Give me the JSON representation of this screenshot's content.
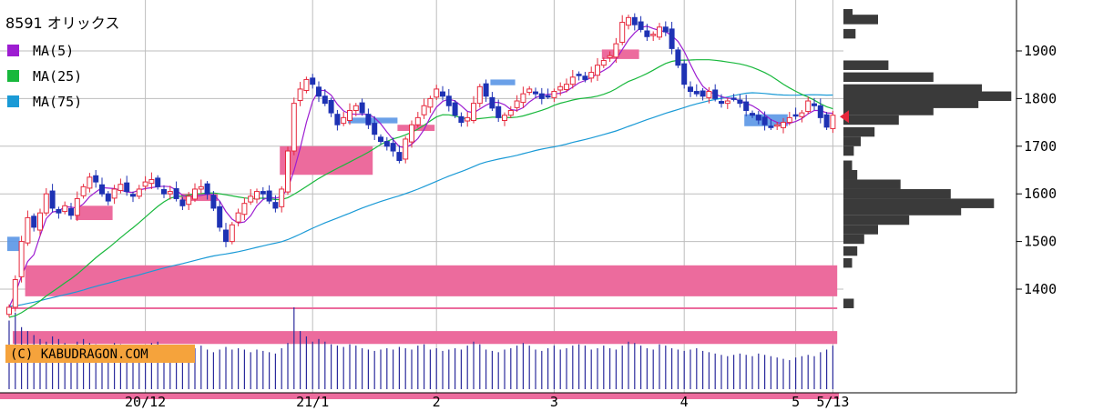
{
  "chart_data": {
    "type": "candlestick",
    "title": "8591 オリックス",
    "copyright": "(C) KABUDRAGON.COM",
    "legend": [
      {
        "label": "MA(5)",
        "color": "#9d1dd1"
      },
      {
        "label": "MA(25)",
        "color": "#18b83c"
      },
      {
        "label": "MA(75)",
        "color": "#1a9ad6"
      }
    ],
    "y_axis": {
      "ticks": [
        1400,
        1500,
        1600,
        1700,
        1800,
        1900
      ],
      "range": [
        1260,
        1990
      ],
      "position": "right"
    },
    "x_axis": {
      "labels": [
        {
          "text": "20/12",
          "index": 22
        },
        {
          "text": "21/1",
          "index": 49
        },
        {
          "text": "2",
          "index": 69
        },
        {
          "text": "3",
          "index": 88
        },
        {
          "text": "4",
          "index": 109
        },
        {
          "text": "5",
          "index": 127
        },
        {
          "text": "5/13",
          "index": 133
        }
      ]
    },
    "colors": {
      "up": "#e6283c",
      "down": "#1e32b4",
      "pink": "#ec6b9d",
      "blue_band": "#5a96e6",
      "volume": "#2b2b9c",
      "grid": "#bdbdbd",
      "profile": "#3a3a3a",
      "marker": "#e6283c",
      "copyright_bg": "#f5a33c"
    },
    "closes": [
      1362,
      1420,
      1500,
      1550,
      1530,
      1560,
      1600,
      1570,
      1560,
      1575,
      1555,
      1590,
      1615,
      1635,
      1625,
      1600,
      1585,
      1610,
      1620,
      1605,
      1595,
      1610,
      1625,
      1630,
      1615,
      1600,
      1605,
      1590,
      1575,
      1595,
      1610,
      1615,
      1600,
      1570,
      1530,
      1500,
      1535,
      1560,
      1580,
      1595,
      1605,
      1600,
      1585,
      1570,
      1610,
      1690,
      1790,
      1820,
      1840,
      1830,
      1805,
      1790,
      1770,
      1745,
      1760,
      1775,
      1785,
      1770,
      1745,
      1725,
      1710,
      1700,
      1690,
      1670,
      1715,
      1745,
      1760,
      1785,
      1800,
      1820,
      1805,
      1785,
      1765,
      1750,
      1760,
      1790,
      1825,
      1805,
      1780,
      1760,
      1765,
      1775,
      1795,
      1810,
      1820,
      1810,
      1800,
      1805,
      1815,
      1825,
      1830,
      1845,
      1850,
      1840,
      1855,
      1870,
      1880,
      1890,
      1915,
      1960,
      1970,
      1955,
      1945,
      1930,
      1935,
      1950,
      1940,
      1905,
      1870,
      1830,
      1815,
      1810,
      1805,
      1815,
      1800,
      1790,
      1795,
      1800,
      1790,
      1775,
      1765,
      1755,
      1745,
      1740,
      1745,
      1750,
      1760,
      1765,
      1770,
      1795,
      1785,
      1760,
      1740,
      1765
    ],
    "volumes": [
      52,
      58,
      47,
      44,
      41,
      38,
      36,
      40,
      38,
      35,
      33,
      36,
      38,
      35,
      34,
      33,
      31,
      35,
      34,
      33,
      30,
      31,
      33,
      35,
      36,
      31,
      30,
      32,
      30,
      29,
      31,
      33,
      30,
      28,
      30,
      32,
      30,
      31,
      30,
      28,
      30,
      29,
      28,
      27,
      31,
      35,
      62,
      44,
      40,
      36,
      38,
      36,
      34,
      33,
      32,
      34,
      33,
      31,
      30,
      29,
      30,
      31,
      30,
      32,
      31,
      30,
      33,
      34,
      30,
      31,
      29,
      30,
      31,
      30,
      33,
      36,
      34,
      30,
      29,
      28,
      30,
      31,
      33,
      35,
      33,
      30,
      29,
      31,
      33,
      30,
      31,
      33,
      34,
      33,
      30,
      31,
      33,
      31,
      30,
      33,
      36,
      35,
      33,
      31,
      30,
      34,
      33,
      31,
      30,
      29,
      30,
      31,
      29,
      28,
      27,
      26,
      25,
      26,
      27,
      26,
      25,
      27,
      26,
      25,
      24,
      23,
      22,
      24,
      25,
      26,
      25,
      28,
      30,
      33
    ],
    "profile": [
      {
        "price": 1966,
        "weight": 0.2
      },
      {
        "price": 1936,
        "weight": 0.07
      },
      {
        "price": 1870,
        "weight": 0.26
      },
      {
        "price": 1845,
        "weight": 0.52
      },
      {
        "price": 1820,
        "weight": 0.8
      },
      {
        "price": 1805,
        "weight": 0.97
      },
      {
        "price": 1790,
        "weight": 0.78
      },
      {
        "price": 1775,
        "weight": 0.52
      },
      {
        "price": 1755,
        "weight": 0.32
      },
      {
        "price": 1730,
        "weight": 0.18
      },
      {
        "price": 1710,
        "weight": 0.1
      },
      {
        "price": 1690,
        "weight": 0.06
      },
      {
        "price": 1660,
        "weight": 0.05
      },
      {
        "price": 1640,
        "weight": 0.08
      },
      {
        "price": 1620,
        "weight": 0.33
      },
      {
        "price": 1600,
        "weight": 0.62
      },
      {
        "price": 1580,
        "weight": 0.87
      },
      {
        "price": 1565,
        "weight": 0.68
      },
      {
        "price": 1545,
        "weight": 0.38
      },
      {
        "price": 1525,
        "weight": 0.2
      },
      {
        "price": 1505,
        "weight": 0.12
      },
      {
        "price": 1480,
        "weight": 0.08
      },
      {
        "price": 1455,
        "weight": 0.05
      },
      {
        "price": 1370,
        "weight": 0.06
      }
    ],
    "bands": [
      {
        "kind": "pink",
        "from": 1385,
        "to": 1450,
        "start": 2,
        "end": 134
      },
      {
        "kind": "pink",
        "from": 1285,
        "to": 1312,
        "start": 0,
        "end": 134
      },
      {
        "kind": "pink_line",
        "from": 1360,
        "to": 1360,
        "start": 0,
        "end": 134
      }
    ],
    "boxes": [
      {
        "kind": "pink",
        "from": 1640,
        "to": 1700,
        "start": 44,
        "end": 59
      },
      {
        "kind": "pink",
        "from": 1545,
        "to": 1575,
        "start": 11,
        "end": 17
      },
      {
        "kind": "pink",
        "from": 1585,
        "to": 1600,
        "start": 28,
        "end": 34
      },
      {
        "kind": "pink",
        "from": 1883,
        "to": 1903,
        "start": 96,
        "end": 102
      },
      {
        "kind": "pink",
        "from": 1732,
        "to": 1745,
        "start": 63,
        "end": 69
      },
      {
        "kind": "blue",
        "from": 1748,
        "to": 1760,
        "start": 55,
        "end": 63
      },
      {
        "kind": "blue",
        "from": 1742,
        "to": 1767,
        "start": 119,
        "end": 126
      },
      {
        "kind": "blue",
        "from": 1480,
        "to": 1510,
        "start": 0,
        "end": 2
      },
      {
        "kind": "blue",
        "from": 1828,
        "to": 1840,
        "start": 78,
        "end": 82
      }
    ],
    "current_price": 1762
  }
}
